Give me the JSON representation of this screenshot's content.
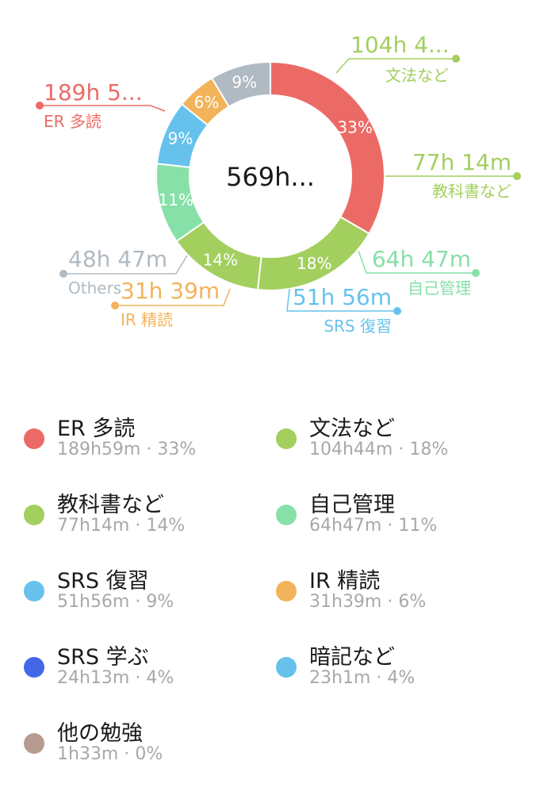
{
  "chart_data": {
    "type": "pie",
    "center_label": "569h...",
    "slices": [
      {
        "name": "ER 多読",
        "value_label": "189h 5...",
        "detail": "189h59m · 33%",
        "pct_label": "33%",
        "minutes": 11399,
        "color": "#ec6a66"
      },
      {
        "name": "文法など",
        "value_label": "104h 4...",
        "detail": "104h44m · 18%",
        "pct_label": "18%",
        "minutes": 6284,
        "color": "#a3cf5f"
      },
      {
        "name": "教科書など",
        "value_label": "77h 14m",
        "detail": "77h14m · 14%",
        "pct_label": "14%",
        "minutes": 4634,
        "color": "#a3cf5f"
      },
      {
        "name": "自己管理",
        "value_label": "64h 47m",
        "detail": "64h47m · 11%",
        "pct_label": "11%",
        "minutes": 3887,
        "color": "#86e0a8"
      },
      {
        "name": "SRS 復習",
        "value_label": "51h 56m",
        "detail": "51h56m · 9%",
        "pct_label": "9%",
        "minutes": 3116,
        "color": "#66c2ec"
      },
      {
        "name": "IR 精読",
        "value_label": "31h 39m",
        "detail": "31h39m · 6%",
        "pct_label": "6%",
        "minutes": 1899,
        "color": "#f2b35a"
      },
      {
        "name": "Others",
        "value_label": "48h 47m",
        "pct_label": "9%",
        "minutes": 2927,
        "color": "#b0bac2"
      }
    ],
    "legend": [
      {
        "name": "ER 多読",
        "detail": "189h59m · 33%",
        "color": "#ec6a66"
      },
      {
        "name": "文法など",
        "detail": "104h44m · 18%",
        "color": "#a3cf5f"
      },
      {
        "name": "教科書など",
        "detail": "77h14m · 14%",
        "color": "#a3cf5f"
      },
      {
        "name": "自己管理",
        "detail": "64h47m · 11%",
        "color": "#86e0a8"
      },
      {
        "name": "SRS 復習",
        "detail": "51h56m · 9%",
        "color": "#66c2ec"
      },
      {
        "name": "IR 精読",
        "detail": "31h39m · 6%",
        "color": "#f2b35a"
      },
      {
        "name": "SRS 学ぶ",
        "detail": "24h13m · 4%",
        "color": "#4467e8"
      },
      {
        "name": "暗記など",
        "detail": "23h1m · 4%",
        "color": "#66c2ec"
      },
      {
        "name": "他の勉強",
        "detail": "1h33m · 0%",
        "color": "#b89b90"
      }
    ]
  }
}
